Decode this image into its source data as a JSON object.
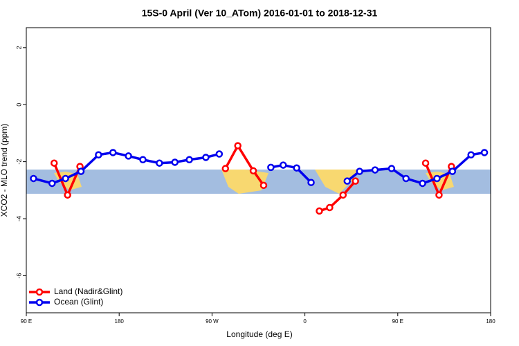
{
  "chart_data": {
    "type": "line",
    "title": "15S-0 April (Ver 10_ATom)   2016-01-01 to 2018-12-31",
    "x_label": "Longitude (deg E)",
    "y_label": "XCO2 - MLO trend (ppm)",
    "xlim": [
      90,
      540
    ],
    "xticks": [
      {
        "value": 90,
        "label": "90 E"
      },
      180,
      {
        "value": 270,
        "label": "90 W"
      },
      {
        "value": 360,
        "label": "0"
      },
      {
        "value": 450,
        "label": "90 E"
      },
      {
        "value": 540,
        "label": "180"
      }
    ],
    "ylim": [
      -7.3,
      2.7
    ],
    "yticks": [
      2,
      0,
      -2,
      -4,
      -6
    ],
    "legend": "bottomleft",
    "series": [
      {
        "name": "Land (Nadir&Glint)",
        "color": "#ff0000",
        "x": [
          117,
          130,
          142,
          null,
          283,
          295,
          310,
          320,
          null,
          374,
          384,
          397,
          409,
          null,
          477,
          490,
          502
        ],
        "values": [
          -2.05,
          -3.17,
          -2.17,
          null,
          -2.24,
          -1.44,
          -2.32,
          -2.83,
          null,
          -3.73,
          -3.61,
          -3.17,
          -2.68,
          null,
          -2.05,
          -3.17,
          -2.17
        ]
      },
      {
        "name": "Ocean (Glint)",
        "color": "#0000ee",
        "x": [
          97,
          115,
          128,
          143,
          160,
          174,
          189,
          203,
          219,
          234,
          248,
          264,
          277,
          null,
          327,
          339,
          352,
          366,
          null,
          401,
          413,
          428,
          444,
          458,
          474,
          488,
          503,
          521,
          534
        ],
        "values": [
          -2.59,
          -2.76,
          -2.59,
          -2.34,
          -1.76,
          -1.68,
          -1.8,
          -1.93,
          -2.05,
          -2.02,
          -1.93,
          -1.85,
          -1.73,
          null,
          -2.2,
          -2.12,
          -2.22,
          -2.73,
          null,
          -2.68,
          -2.34,
          -2.29,
          -2.24,
          -2.59,
          -2.76,
          -2.59,
          -2.34,
          -1.76,
          -1.68
        ]
      }
    ]
  }
}
